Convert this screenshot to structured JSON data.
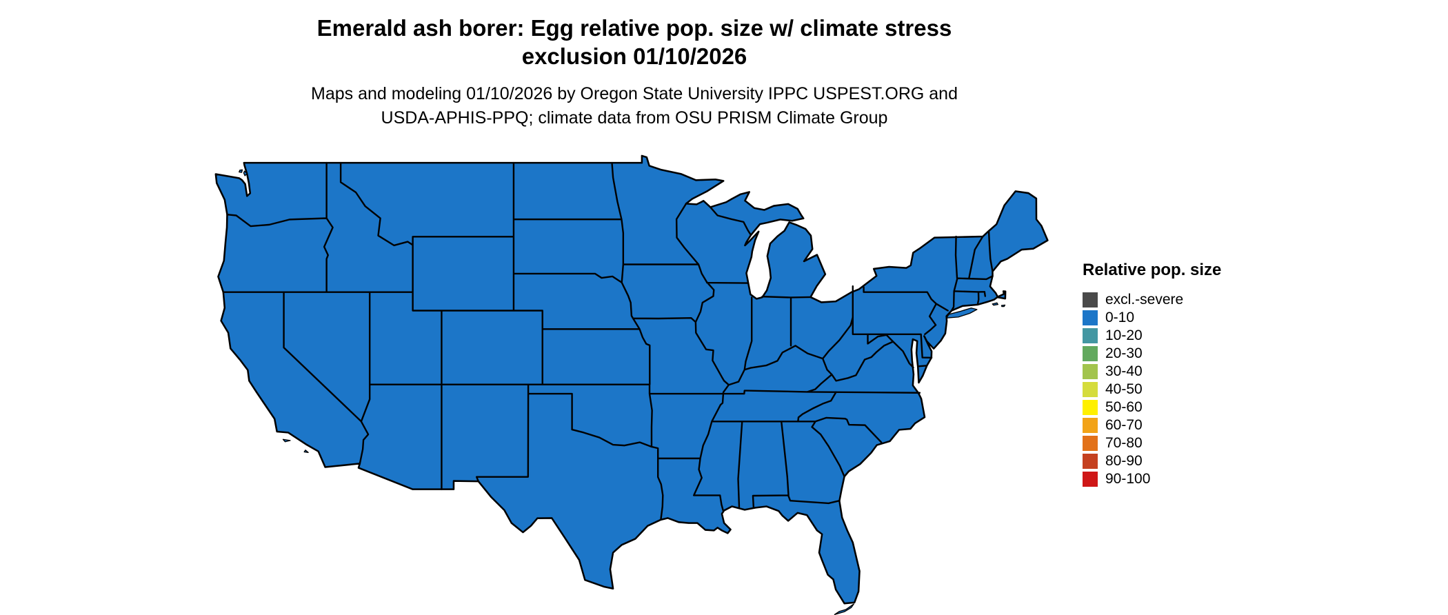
{
  "header": {
    "title_line1": "Emerald ash borer: Egg relative pop. size w/ climate stress",
    "title_line2": "exclusion 01/10/2026",
    "subtitle_line1": "Maps and modeling 01/10/2026 by Oregon State University IPPC USPEST.ORG and",
    "subtitle_line2": "USDA-APHIS-PPQ; climate data from OSU PRISM Climate Group"
  },
  "legend": {
    "title": "Relative pop. size",
    "items": [
      {
        "label": "excl.-severe",
        "color": "#4a4a4a"
      },
      {
        "label": "0-10",
        "color": "#1c76c8"
      },
      {
        "label": "10-20",
        "color": "#4397a2"
      },
      {
        "label": "20-30",
        "color": "#62a95e"
      },
      {
        "label": "30-40",
        "color": "#a2c44d"
      },
      {
        "label": "40-50",
        "color": "#d5dc3c"
      },
      {
        "label": "50-60",
        "color": "#fff000"
      },
      {
        "label": "60-70",
        "color": "#f2a317"
      },
      {
        "label": "70-80",
        "color": "#e27119"
      },
      {
        "label": "80-90",
        "color": "#c54120"
      },
      {
        "label": "90-100",
        "color": "#cf1717"
      }
    ]
  },
  "map": {
    "fill_label": "0-10",
    "border_color": "#000000"
  }
}
